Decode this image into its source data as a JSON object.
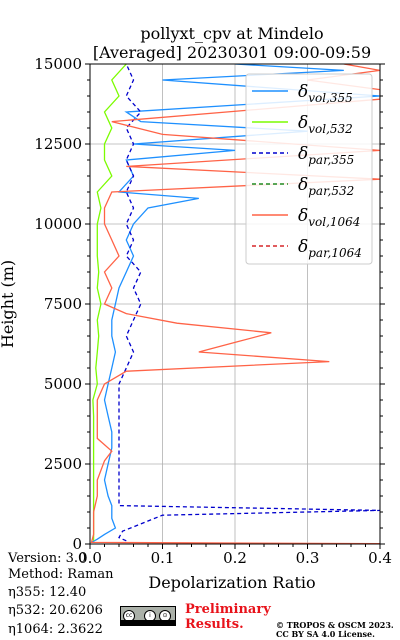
{
  "chart_data": {
    "type": "line",
    "title_line1": "pollyxt_cpv at Mindelo",
    "title_line2": "[Averaged] 20230301 09:00-09:59",
    "xlabel": "Depolarization Ratio",
    "ylabel": "Height (m)",
    "xlim": [
      0,
      0.4
    ],
    "ylim": [
      0,
      15000
    ],
    "x_ticks": [
      "0.0",
      "0.1",
      "0.2",
      "0.3",
      "0.4"
    ],
    "y_ticks": [
      "0",
      "2500",
      "5000",
      "7500",
      "10000",
      "12500",
      "15000"
    ],
    "grid": true,
    "legend_position": "top-right",
    "legend": [
      {
        "base": "δ",
        "sub": "vol,355",
        "color": "#1e90ff",
        "dash": "solid"
      },
      {
        "base": "δ",
        "sub": "vol,532",
        "color": "#7cfc00",
        "dash": "solid"
      },
      {
        "base": "δ",
        "sub": "par,355",
        "color": "#0000cd",
        "dash": "dashed"
      },
      {
        "base": "δ",
        "sub": "par,532",
        "color": "#228b22",
        "dash": "dashed"
      },
      {
        "base": "δ",
        "sub": "vol,1064",
        "color": "#ff6347",
        "dash": "solid"
      },
      {
        "base": "δ",
        "sub": "par,1064",
        "color": "#d62728",
        "dash": "dashed"
      }
    ],
    "series": [
      {
        "name": "δvol,355",
        "color": "#1e90ff",
        "dash": "solid",
        "points": [
          [
            0.002,
            50
          ],
          [
            0.01,
            150
          ],
          [
            0.02,
            300
          ],
          [
            0.035,
            500
          ],
          [
            0.03,
            800
          ],
          [
            0.03,
            1200
          ],
          [
            0.025,
            1500
          ],
          [
            0.02,
            2000
          ],
          [
            0.025,
            2500
          ],
          [
            0.03,
            3000
          ],
          [
            0.03,
            3500
          ],
          [
            0.025,
            4000
          ],
          [
            0.02,
            4500
          ],
          [
            0.025,
            5000
          ],
          [
            0.03,
            5500
          ],
          [
            0.035,
            6000
          ],
          [
            0.03,
            6500
          ],
          [
            0.03,
            7000
          ],
          [
            0.035,
            7500
          ],
          [
            0.04,
            8000
          ],
          [
            0.05,
            8500
          ],
          [
            0.06,
            9000
          ],
          [
            0.05,
            9500
          ],
          [
            0.06,
            10000
          ],
          [
            0.08,
            10500
          ],
          [
            0.15,
            10800
          ],
          [
            0.04,
            11000
          ],
          [
            0.06,
            11500
          ],
          [
            0.05,
            12000
          ],
          [
            0.2,
            12300
          ],
          [
            0.06,
            12500
          ],
          [
            0.3,
            12900
          ],
          [
            0.07,
            13200
          ],
          [
            0.05,
            13500
          ],
          [
            0.4,
            14000
          ],
          [
            0.1,
            14500
          ],
          [
            0.35,
            14800
          ],
          [
            0.2,
            15000
          ]
        ]
      },
      {
        "name": "δvol,532",
        "color": "#7cfc00",
        "dash": "solid",
        "points": [
          [
            0.005,
            100
          ],
          [
            0.005,
            500
          ],
          [
            0.005,
            1000
          ],
          [
            0.005,
            2000
          ],
          [
            0.005,
            3000
          ],
          [
            0.005,
            4000
          ],
          [
            0.004,
            4500
          ],
          [
            0.01,
            5000
          ],
          [
            0.008,
            5500
          ],
          [
            0.01,
            6000
          ],
          [
            0.012,
            6500
          ],
          [
            0.01,
            7000
          ],
          [
            0.015,
            7500
          ],
          [
            0.01,
            8000
          ],
          [
            0.012,
            8500
          ],
          [
            0.01,
            9000
          ],
          [
            0.01,
            9500
          ],
          [
            0.01,
            10000
          ],
          [
            0.015,
            10500
          ],
          [
            0.01,
            11000
          ],
          [
            0.03,
            11500
          ],
          [
            0.02,
            12000
          ],
          [
            0.02,
            12500
          ],
          [
            0.03,
            13000
          ],
          [
            0.02,
            13500
          ],
          [
            0.04,
            14000
          ],
          [
            0.03,
            14500
          ],
          [
            0.05,
            15000
          ]
        ]
      },
      {
        "name": "δpar,355",
        "color": "#0000cd",
        "dash": "dashed",
        "points": [
          [
            0.05,
            100
          ],
          [
            0.04,
            200
          ],
          [
            0.045,
            400
          ],
          [
            0.1,
            900
          ],
          [
            0.4,
            1050
          ],
          [
            0.04,
            1200
          ],
          [
            0.04,
            2000
          ],
          [
            0.04,
            3000
          ],
          [
            0.04,
            4000
          ],
          [
            0.04,
            5000
          ],
          [
            0.05,
            5500
          ],
          [
            0.06,
            6000
          ],
          [
            0.05,
            6500
          ],
          [
            0.06,
            7000
          ],
          [
            0.07,
            7500
          ],
          [
            0.06,
            8000
          ],
          [
            0.07,
            8500
          ],
          [
            0.05,
            9000
          ],
          [
            0.06,
            9500
          ],
          [
            0.05,
            10000
          ],
          [
            0.06,
            10500
          ],
          [
            0.05,
            11000
          ],
          [
            0.06,
            11500
          ],
          [
            0.05,
            12000
          ],
          [
            0.06,
            12500
          ],
          [
            0.05,
            13000
          ],
          [
            0.07,
            13500
          ],
          [
            0.05,
            14000
          ],
          [
            0.06,
            14500
          ],
          [
            0.05,
            15000
          ]
        ]
      },
      {
        "name": "δvol,1064",
        "color": "#ff6347",
        "dash": "solid",
        "points": [
          [
            0.4,
            10
          ],
          [
            0.002,
            50
          ],
          [
            0.005,
            300
          ],
          [
            0.005,
            1000
          ],
          [
            0.01,
            1500
          ],
          [
            0.01,
            2000
          ],
          [
            0.02,
            2600
          ],
          [
            0.03,
            2900
          ],
          [
            0.01,
            3300
          ],
          [
            0.01,
            3800
          ],
          [
            0.01,
            4500
          ],
          [
            0.02,
            5000
          ],
          [
            0.05,
            5400
          ],
          [
            0.33,
            5700
          ],
          [
            0.15,
            6000
          ],
          [
            0.2,
            6300
          ],
          [
            0.25,
            6600
          ],
          [
            0.12,
            6900
          ],
          [
            0.05,
            7200
          ],
          [
            0.02,
            7500
          ],
          [
            0.03,
            8000
          ],
          [
            0.02,
            8500
          ],
          [
            0.04,
            9000
          ],
          [
            0.03,
            9500
          ],
          [
            0.02,
            10000
          ],
          [
            0.02,
            10500
          ],
          [
            0.03,
            11000
          ],
          [
            0.4,
            11400
          ],
          [
            0.05,
            11800
          ],
          [
            0.4,
            12300
          ],
          [
            0.1,
            12800
          ],
          [
            0.03,
            13200
          ],
          [
            0.4,
            13900
          ],
          [
            0.4,
            14200
          ],
          [
            0.3,
            14500
          ],
          [
            0.4,
            14800
          ],
          [
            0.35,
            15000
          ]
        ]
      }
    ]
  },
  "meta": {
    "version": "Version: 3.0",
    "method": "Method: Raman",
    "eta355": "η355:  12.40",
    "eta532": "η532: 20.6206",
    "eta1064": "η1064: 2.3622"
  },
  "footer": {
    "preliminary_line1": "Preliminary",
    "preliminary_line2": "Results.",
    "copyright_line1": "© TROPOS & OSCM 2023.",
    "copyright_line2": "CC BY SA 4.0 License.",
    "cc_badge": [
      "cc",
      "i",
      "⊙",
      "BY SA"
    ]
  }
}
